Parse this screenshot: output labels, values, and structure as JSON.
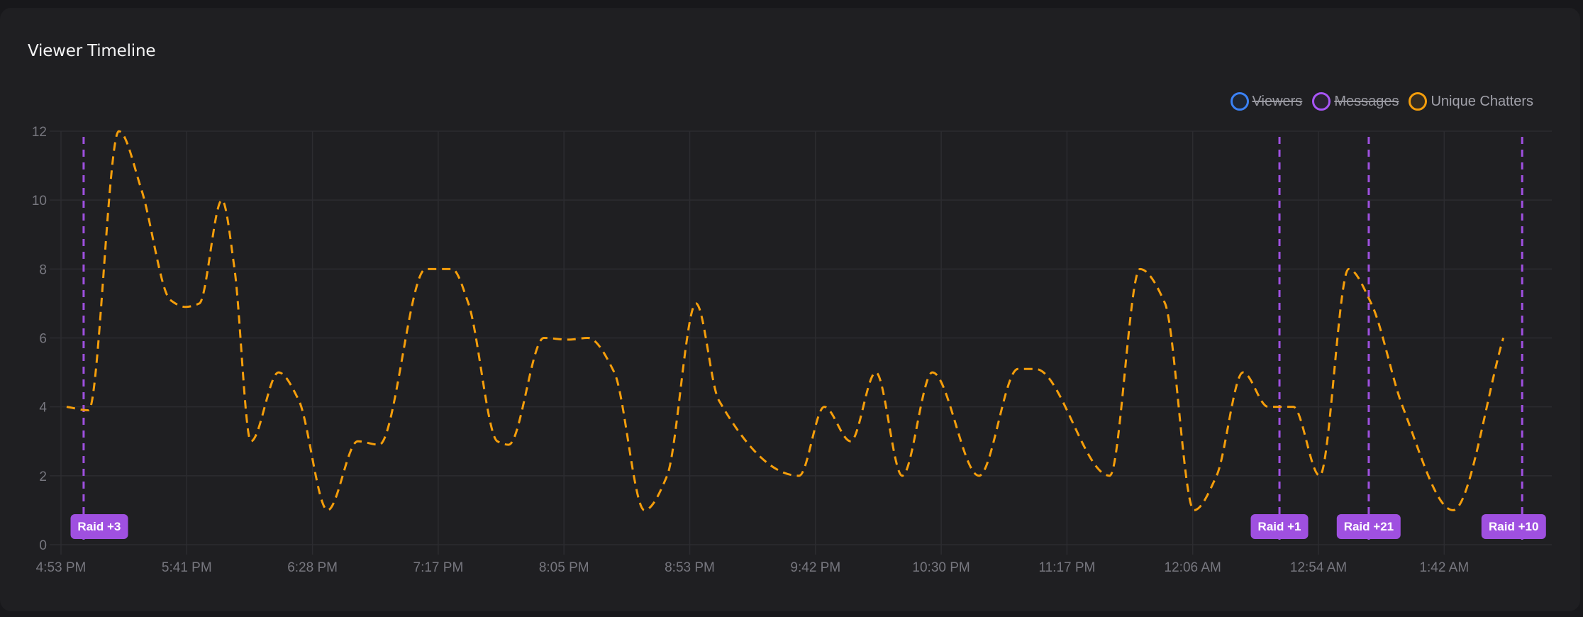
{
  "card": {
    "title": "Viewer Timeline"
  },
  "legend": [
    {
      "label": "Viewers",
      "color": "#3b82f6",
      "fill": "#1e2633",
      "hidden": true
    },
    {
      "label": "Messages",
      "color": "#a855f7",
      "fill": "#2a2233",
      "hidden": true
    },
    {
      "label": "Unique Chatters",
      "color": "#f59e0b",
      "fill": "#352c1f",
      "hidden": false
    }
  ],
  "colors": {
    "line": "#f59e0b",
    "raid": "#9f50e0",
    "grid": "#2c2c30",
    "tick_text": "#77777f"
  },
  "chart_data": {
    "type": "line",
    "title": "Viewer Timeline",
    "xlabel": "",
    "ylabel": "",
    "ylim": [
      0,
      12
    ],
    "yticks": [
      0,
      2,
      4,
      6,
      8,
      10,
      12
    ],
    "grid": true,
    "legend_position": "top-right",
    "x_tick_labels": [
      "4:53 PM",
      "5:41 PM",
      "6:28 PM",
      "7:17 PM",
      "8:05 PM",
      "8:53 PM",
      "9:42 PM",
      "10:30 PM",
      "11:17 PM",
      "12:06 AM",
      "12:54 AM",
      "1:42 AM"
    ],
    "series": [
      {
        "name": "Unique Chatters",
        "style": "dashed",
        "x_tick_units": [
          0.045,
          0.22,
          0.46,
          0.64,
          0.87,
          0.99,
          1.1,
          1.28,
          1.38,
          1.51,
          1.73,
          1.89,
          2.12,
          2.36,
          2.53,
          2.9,
          3.11,
          3.24,
          3.47,
          3.56,
          3.84,
          4.03,
          4.19,
          4.4,
          4.64,
          4.82,
          5.05,
          5.23,
          5.87,
          6.07,
          6.28,
          6.48,
          6.69,
          6.93,
          7.3,
          7.61,
          7.75,
          8.34,
          8.58,
          8.78,
          9.01,
          9.19,
          9.4,
          9.6,
          9.8,
          10.01,
          10.24,
          10.42,
          10.67,
          11.07,
          11.47
        ],
        "values": [
          4,
          3.9,
          12,
          10.3,
          7.1,
          6.9,
          7.0,
          10,
          8,
          3,
          5,
          4.2,
          1,
          3,
          2.9,
          8,
          8,
          7,
          3,
          2.9,
          6,
          5.95,
          6,
          5,
          1,
          2,
          7,
          4.2,
          2,
          4,
          3,
          5,
          2,
          5,
          2,
          5.1,
          5.1,
          2,
          8,
          7,
          1,
          2,
          5,
          4,
          4,
          2,
          8,
          7,
          4,
          1,
          6
        ]
      },
      {
        "name": "Viewers",
        "hidden": true
      },
      {
        "name": "Messages",
        "hidden": true
      }
    ],
    "annotations": [
      {
        "label": "Raid +3",
        "x_tick_units": 0.18
      },
      {
        "label": "Raid +1",
        "x_tick_units": 9.69
      },
      {
        "label": "Raid +21",
        "x_tick_units": 10.4
      },
      {
        "label": "Raid +10",
        "x_tick_units": 11.62
      }
    ]
  }
}
